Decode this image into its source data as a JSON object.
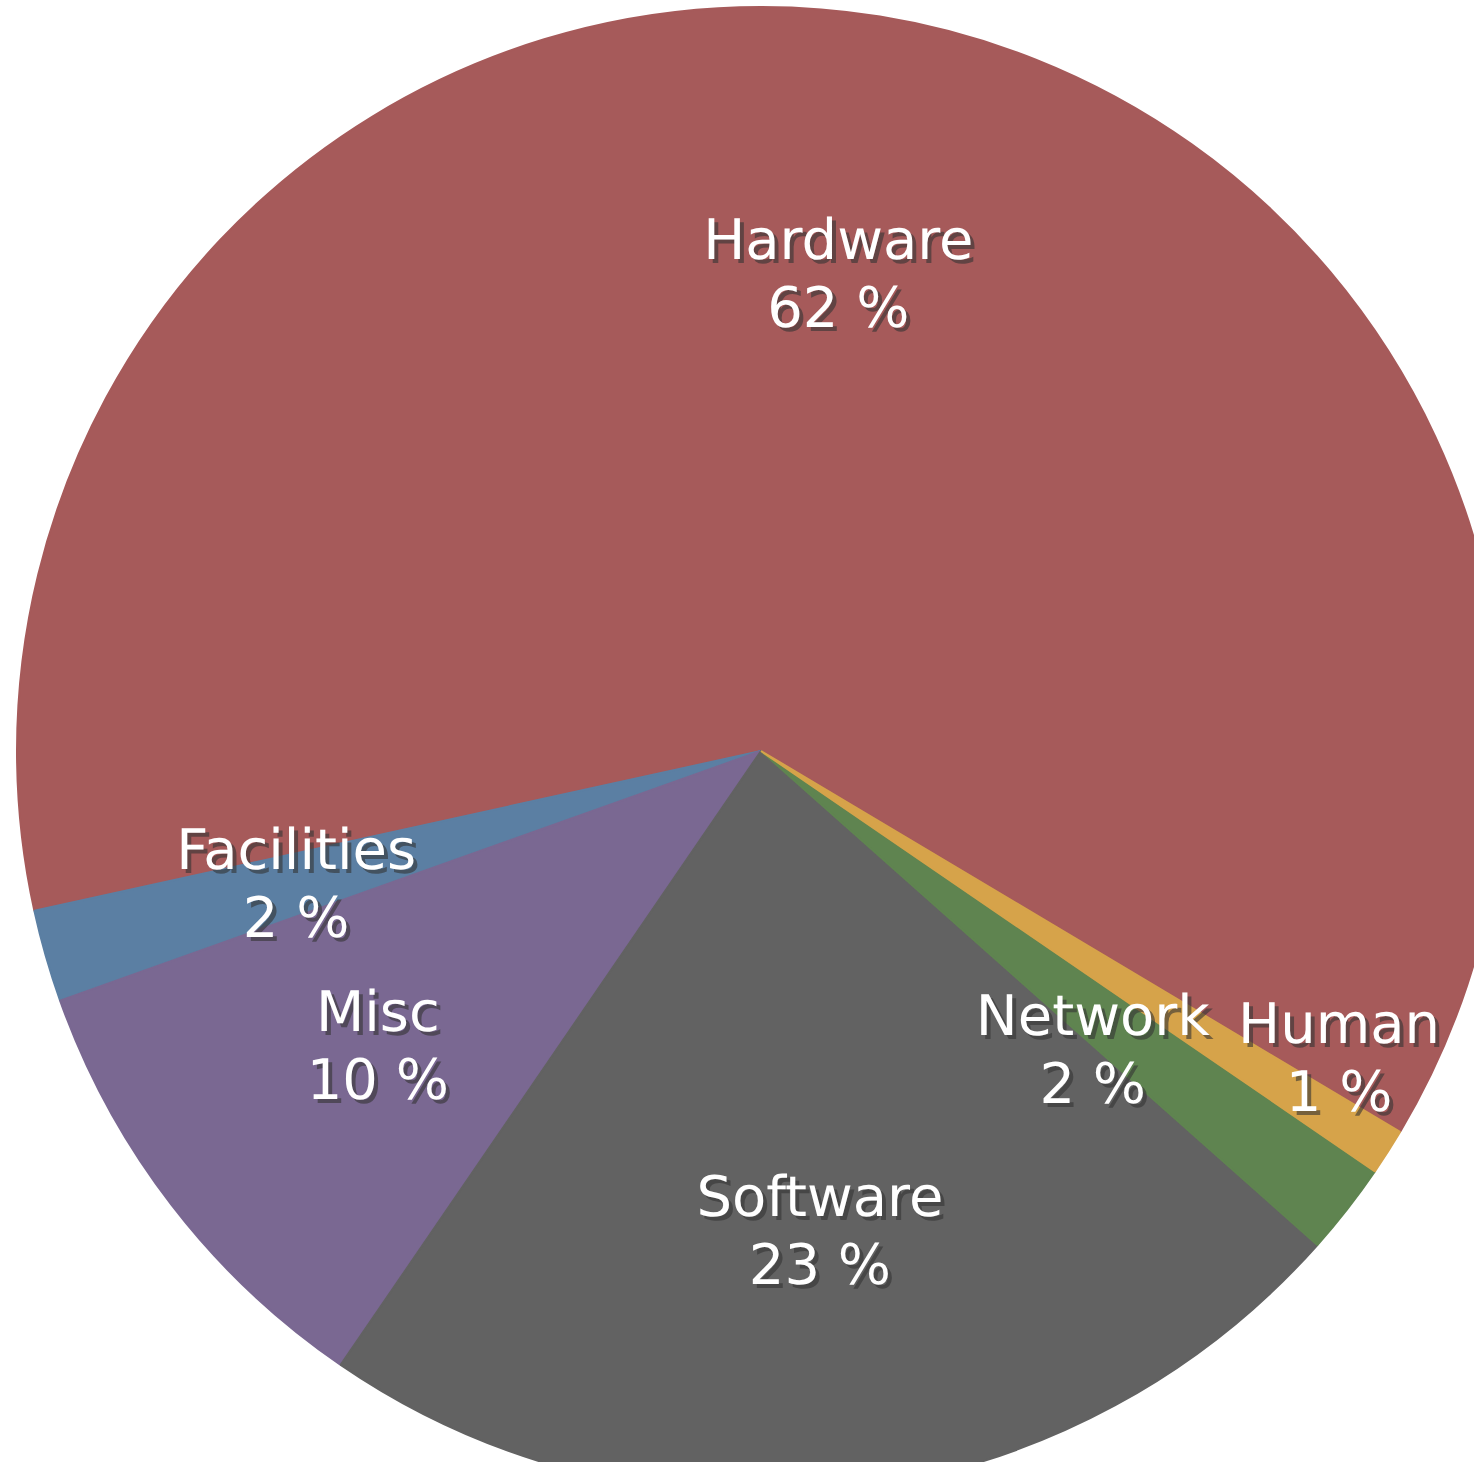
{
  "chart_data": {
    "type": "pie",
    "categories": [
      "Hardware",
      "Facilities",
      "Misc",
      "Software",
      "Network",
      "Human"
    ],
    "values": [
      62,
      2,
      10,
      23,
      2,
      1
    ],
    "colors": [
      "#a65a5a",
      "#5b7fa3",
      "#7a6892",
      "#626262",
      "#5f8450",
      "#d6a34a"
    ],
    "value_labels": [
      "62 %",
      "2 %",
      "10 %",
      "23 %",
      "2 %",
      "1 %"
    ]
  }
}
